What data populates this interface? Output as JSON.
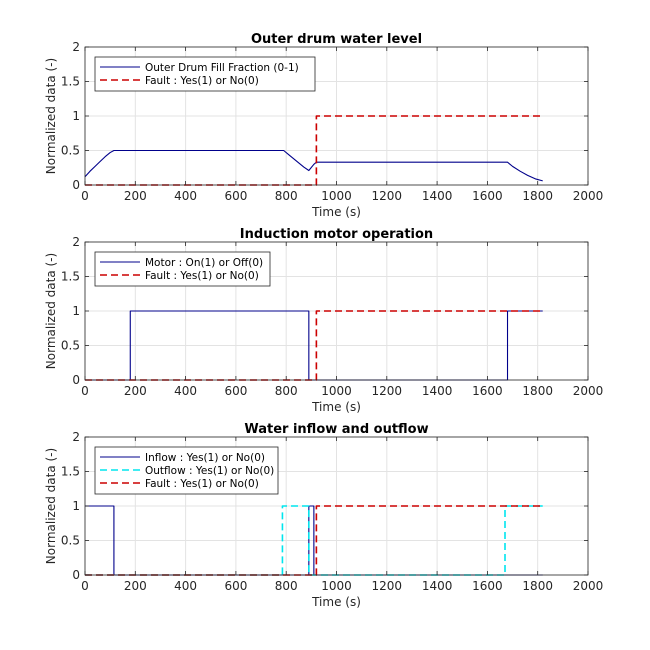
{
  "chart_data": [
    {
      "type": "line",
      "title": "Outer drum water level",
      "xlabel": "Time (s)",
      "ylabel": "Normalized data (-)",
      "xlim": [
        0,
        2000
      ],
      "ylim": [
        0,
        2
      ],
      "xticks": [
        0,
        200,
        400,
        600,
        800,
        1000,
        1200,
        1400,
        1600,
        1800,
        2000
      ],
      "yticks": [
        0,
        0.5,
        1,
        1.5,
        2
      ],
      "xtick_labels": [
        "0",
        "200",
        "400",
        "600",
        "800",
        "1000",
        "1200",
        "1400",
        "1600",
        "1800",
        "2000"
      ],
      "ytick_labels": [
        "0",
        "0.5",
        "1",
        "1.5",
        "2"
      ],
      "grid": true,
      "legend": "top-left",
      "series": [
        {
          "name": "Outer Drum Fill Fraction (0-1)",
          "color": "#00008b",
          "style": "solid",
          "x": [
            0,
            20,
            40,
            60,
            80,
            100,
            115,
            790,
            810,
            830,
            850,
            870,
            890,
            910,
            920,
            1680,
            1700,
            1730,
            1760,
            1790,
            1820
          ],
          "y": [
            0.12,
            0.2,
            0.27,
            0.34,
            0.41,
            0.47,
            0.5,
            0.5,
            0.44,
            0.38,
            0.32,
            0.26,
            0.21,
            0.3,
            0.33,
            0.33,
            0.27,
            0.2,
            0.14,
            0.09,
            0.06
          ]
        },
        {
          "name": "Fault : Yes(1) or No(0)",
          "color": "#cc0000",
          "style": "dashed",
          "x": [
            0,
            920,
            920,
            1820
          ],
          "y": [
            0,
            0,
            1,
            1
          ]
        }
      ]
    },
    {
      "type": "line",
      "title": "Induction motor operation",
      "xlabel": "Time (s)",
      "ylabel": "Normalized data (-)",
      "xlim": [
        0,
        2000
      ],
      "ylim": [
        0,
        2
      ],
      "xticks": [
        0,
        200,
        400,
        600,
        800,
        1000,
        1200,
        1400,
        1600,
        1800,
        2000
      ],
      "yticks": [
        0,
        0.5,
        1,
        1.5,
        2
      ],
      "xtick_labels": [
        "0",
        "200",
        "400",
        "600",
        "800",
        "1000",
        "1200",
        "1400",
        "1600",
        "1800",
        "2000"
      ],
      "ytick_labels": [
        "0",
        "0.5",
        "1",
        "1.5",
        "2"
      ],
      "grid": true,
      "legend": "top-left",
      "series": [
        {
          "name": "Motor : On(1) or Off(0)",
          "color": "#00008b",
          "style": "solid",
          "x": [
            0,
            180,
            180,
            890,
            890,
            1680,
            1680,
            1820
          ],
          "y": [
            0,
            0,
            1,
            1,
            0,
            0,
            1,
            1
          ]
        },
        {
          "name": "Fault : Yes(1) or No(0)",
          "color": "#cc0000",
          "style": "dashed",
          "x": [
            0,
            920,
            920,
            1820
          ],
          "y": [
            0,
            0,
            1,
            1
          ]
        }
      ]
    },
    {
      "type": "line",
      "title": "Water inflow and outflow",
      "xlabel": "Time (s)",
      "ylabel": "Normalized data (-)",
      "xlim": [
        0,
        2000
      ],
      "ylim": [
        0,
        2
      ],
      "xticks": [
        0,
        200,
        400,
        600,
        800,
        1000,
        1200,
        1400,
        1600,
        1800,
        2000
      ],
      "yticks": [
        0,
        0.5,
        1,
        1.5,
        2
      ],
      "xtick_labels": [
        "0",
        "200",
        "400",
        "600",
        "800",
        "1000",
        "1200",
        "1400",
        "1600",
        "1800",
        "2000"
      ],
      "ytick_labels": [
        "0",
        "0.5",
        "1",
        "1.5",
        "2"
      ],
      "grid": true,
      "legend": "top-left",
      "series": [
        {
          "name": "Inflow : Yes(1) or No(0)",
          "color": "#00008b",
          "style": "solid",
          "x": [
            0,
            115,
            115,
            890,
            890,
            910,
            910,
            1820
          ],
          "y": [
            1,
            1,
            0,
            0,
            1,
            1,
            0,
            0
          ]
        },
        {
          "name": "Outflow : Yes(1) or No(0)",
          "color": "#00e5ee",
          "style": "dashed",
          "x": [
            0,
            785,
            785,
            890,
            890,
            1670,
            1670,
            1820
          ],
          "y": [
            0,
            0,
            1,
            1,
            0,
            0,
            1,
            1
          ]
        },
        {
          "name": "Fault : Yes(1) or No(0)",
          "color": "#cc0000",
          "style": "dashed",
          "x": [
            0,
            920,
            920,
            1820
          ],
          "y": [
            0,
            0,
            1,
            1
          ]
        }
      ]
    }
  ]
}
